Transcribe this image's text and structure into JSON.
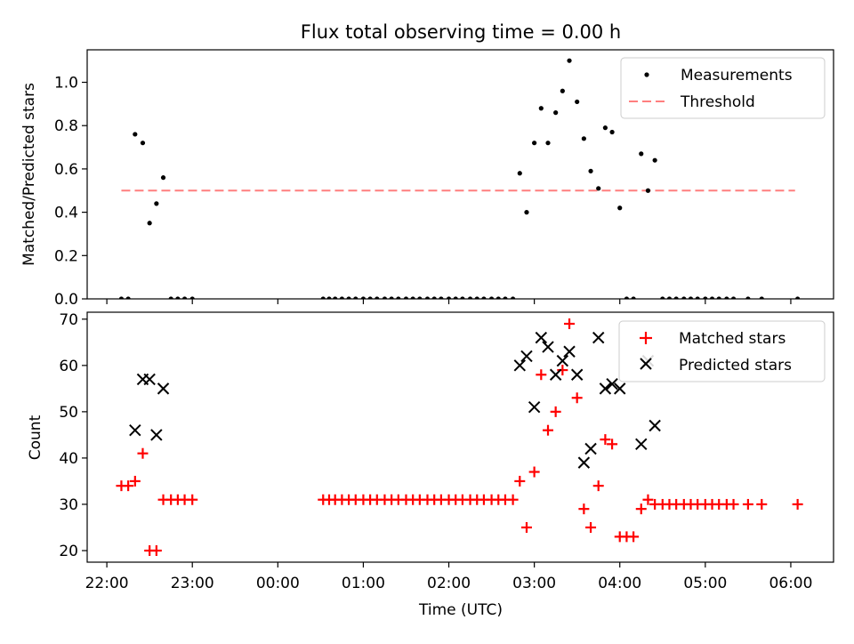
{
  "title": "Flux total observing time = 0.00 h",
  "xlabel": "Time (UTC)",
  "x_tick_labels": [
    "22:00",
    "23:00",
    "00:00",
    "01:00",
    "02:00",
    "03:00",
    "04:00",
    "05:00",
    "06:00"
  ],
  "x_ticks_hours": [
    0,
    1,
    2,
    3,
    4,
    5,
    6,
    7,
    8
  ],
  "x_range_hours": [
    -0.23,
    8.5
  ],
  "x_origin_label": "22:00",
  "chart_data": [
    {
      "type": "scatter",
      "ylabel": "Matched/Predicted stars",
      "ylim": [
        0,
        1.15
      ],
      "y_ticks": [
        0.0,
        0.2,
        0.4,
        0.6,
        0.8,
        1.0
      ],
      "y_tick_labels": [
        "0.0",
        "0.2",
        "0.4",
        "0.6",
        "0.8",
        "1.0"
      ],
      "legend_position": "top-right",
      "threshold": {
        "name": "Threshold",
        "value": 0.5,
        "x_range": [
          0.17,
          8.05
        ],
        "color": "#ff7f7f",
        "style": "dashed"
      },
      "series": [
        {
          "name": "Measurements",
          "color": "#000000",
          "marker": "dot",
          "points": [
            [
              0.17,
              0.0
            ],
            [
              0.25,
              0.0
            ],
            [
              0.33,
              0.76
            ],
            [
              0.42,
              0.72
            ],
            [
              0.5,
              0.35
            ],
            [
              0.58,
              0.44
            ],
            [
              0.66,
              0.56
            ],
            [
              0.75,
              0.0
            ],
            [
              0.83,
              0.0
            ],
            [
              0.91,
              0.0
            ],
            [
              1.0,
              0.0
            ],
            [
              2.53,
              0.0
            ],
            [
              2.6,
              0.0
            ],
            [
              2.67,
              0.0
            ],
            [
              2.75,
              0.0
            ],
            [
              2.83,
              0.0
            ],
            [
              2.91,
              0.0
            ],
            [
              3.0,
              0.0
            ],
            [
              3.08,
              0.0
            ],
            [
              3.16,
              0.0
            ],
            [
              3.25,
              0.0
            ],
            [
              3.33,
              0.0
            ],
            [
              3.41,
              0.0
            ],
            [
              3.5,
              0.0
            ],
            [
              3.58,
              0.0
            ],
            [
              3.66,
              0.0
            ],
            [
              3.75,
              0.0
            ],
            [
              3.83,
              0.0
            ],
            [
              3.91,
              0.0
            ],
            [
              4.0,
              0.0
            ],
            [
              4.08,
              0.0
            ],
            [
              4.16,
              0.0
            ],
            [
              4.25,
              0.0
            ],
            [
              4.33,
              0.0
            ],
            [
              4.41,
              0.0
            ],
            [
              4.5,
              0.0
            ],
            [
              4.58,
              0.0
            ],
            [
              4.66,
              0.0
            ],
            [
              4.75,
              0.0
            ],
            [
              4.83,
              0.58
            ],
            [
              4.91,
              0.4
            ],
            [
              5.0,
              0.72
            ],
            [
              5.08,
              0.88
            ],
            [
              5.16,
              0.72
            ],
            [
              5.25,
              0.86
            ],
            [
              5.33,
              0.96
            ],
            [
              5.41,
              1.1
            ],
            [
              5.5,
              0.91
            ],
            [
              5.58,
              0.74
            ],
            [
              5.66,
              0.59
            ],
            [
              5.75,
              0.51
            ],
            [
              5.83,
              0.79
            ],
            [
              5.91,
              0.77
            ],
            [
              6.0,
              0.42
            ],
            [
              6.08,
              0.0
            ],
            [
              6.16,
              0.0
            ],
            [
              6.25,
              0.67
            ],
            [
              6.33,
              0.5
            ],
            [
              6.41,
              0.64
            ],
            [
              6.5,
              0.0
            ],
            [
              6.58,
              0.0
            ],
            [
              6.66,
              0.0
            ],
            [
              6.75,
              0.0
            ],
            [
              6.83,
              0.0
            ],
            [
              6.91,
              0.0
            ],
            [
              7.0,
              0.0
            ],
            [
              7.08,
              0.0
            ],
            [
              7.16,
              0.0
            ],
            [
              7.25,
              0.0
            ],
            [
              7.33,
              0.0
            ],
            [
              7.5,
              0.0
            ],
            [
              7.66,
              0.0
            ],
            [
              8.08,
              0.0
            ]
          ]
        }
      ]
    },
    {
      "type": "scatter",
      "ylabel": "Count",
      "ylim": [
        17.5,
        71.5
      ],
      "y_ticks": [
        20,
        30,
        40,
        50,
        60,
        70
      ],
      "y_tick_labels": [
        "20",
        "30",
        "40",
        "50",
        "60",
        "70"
      ],
      "legend_position": "top-right",
      "series": [
        {
          "name": "Matched stars",
          "color": "#ff0000",
          "marker": "plus",
          "points": [
            [
              0.17,
              34
            ],
            [
              0.25,
              34
            ],
            [
              0.33,
              35
            ],
            [
              0.42,
              41
            ],
            [
              0.5,
              20
            ],
            [
              0.58,
              20
            ],
            [
              0.66,
              31
            ],
            [
              0.75,
              31
            ],
            [
              0.83,
              31
            ],
            [
              0.91,
              31
            ],
            [
              1.0,
              31
            ],
            [
              2.53,
              31
            ],
            [
              2.6,
              31
            ],
            [
              2.67,
              31
            ],
            [
              2.75,
              31
            ],
            [
              2.83,
              31
            ],
            [
              2.91,
              31
            ],
            [
              3.0,
              31
            ],
            [
              3.08,
              31
            ],
            [
              3.16,
              31
            ],
            [
              3.25,
              31
            ],
            [
              3.33,
              31
            ],
            [
              3.41,
              31
            ],
            [
              3.5,
              31
            ],
            [
              3.58,
              31
            ],
            [
              3.66,
              31
            ],
            [
              3.75,
              31
            ],
            [
              3.83,
              31
            ],
            [
              3.91,
              31
            ],
            [
              4.0,
              31
            ],
            [
              4.08,
              31
            ],
            [
              4.16,
              31
            ],
            [
              4.25,
              31
            ],
            [
              4.33,
              31
            ],
            [
              4.41,
              31
            ],
            [
              4.5,
              31
            ],
            [
              4.58,
              31
            ],
            [
              4.66,
              31
            ],
            [
              4.75,
              31
            ],
            [
              4.83,
              35
            ],
            [
              4.91,
              25
            ],
            [
              5.0,
              37
            ],
            [
              5.08,
              58
            ],
            [
              5.16,
              46
            ],
            [
              5.25,
              50
            ],
            [
              5.33,
              59
            ],
            [
              5.41,
              69
            ],
            [
              5.5,
              53
            ],
            [
              5.58,
              29
            ],
            [
              5.66,
              25
            ],
            [
              5.75,
              34
            ],
            [
              5.83,
              44
            ],
            [
              5.91,
              43
            ],
            [
              6.0,
              23
            ],
            [
              6.08,
              23
            ],
            [
              6.16,
              23
            ],
            [
              6.25,
              29
            ],
            [
              6.33,
              31
            ],
            [
              6.41,
              30
            ],
            [
              6.5,
              30
            ],
            [
              6.58,
              30
            ],
            [
              6.66,
              30
            ],
            [
              6.75,
              30
            ],
            [
              6.83,
              30
            ],
            [
              6.91,
              30
            ],
            [
              7.0,
              30
            ],
            [
              7.08,
              30
            ],
            [
              7.16,
              30
            ],
            [
              7.25,
              30
            ],
            [
              7.33,
              30
            ],
            [
              7.5,
              30
            ],
            [
              7.66,
              30
            ],
            [
              8.08,
              30
            ]
          ]
        },
        {
          "name": "Predicted stars",
          "color": "#000000",
          "marker": "x",
          "points": [
            [
              0.33,
              46
            ],
            [
              0.42,
              57
            ],
            [
              0.5,
              57
            ],
            [
              0.58,
              45
            ],
            [
              0.66,
              55
            ],
            [
              4.83,
              60
            ],
            [
              4.91,
              62
            ],
            [
              5.0,
              51
            ],
            [
              5.08,
              66
            ],
            [
              5.16,
              64
            ],
            [
              5.25,
              58
            ],
            [
              5.33,
              61
            ],
            [
              5.41,
              63
            ],
            [
              5.5,
              58
            ],
            [
              5.58,
              39
            ],
            [
              5.66,
              42
            ],
            [
              5.75,
              66
            ],
            [
              5.83,
              55
            ],
            [
              5.91,
              56
            ],
            [
              6.0,
              55
            ],
            [
              6.25,
              43
            ],
            [
              6.33,
              61
            ],
            [
              6.41,
              47
            ]
          ]
        }
      ]
    }
  ]
}
